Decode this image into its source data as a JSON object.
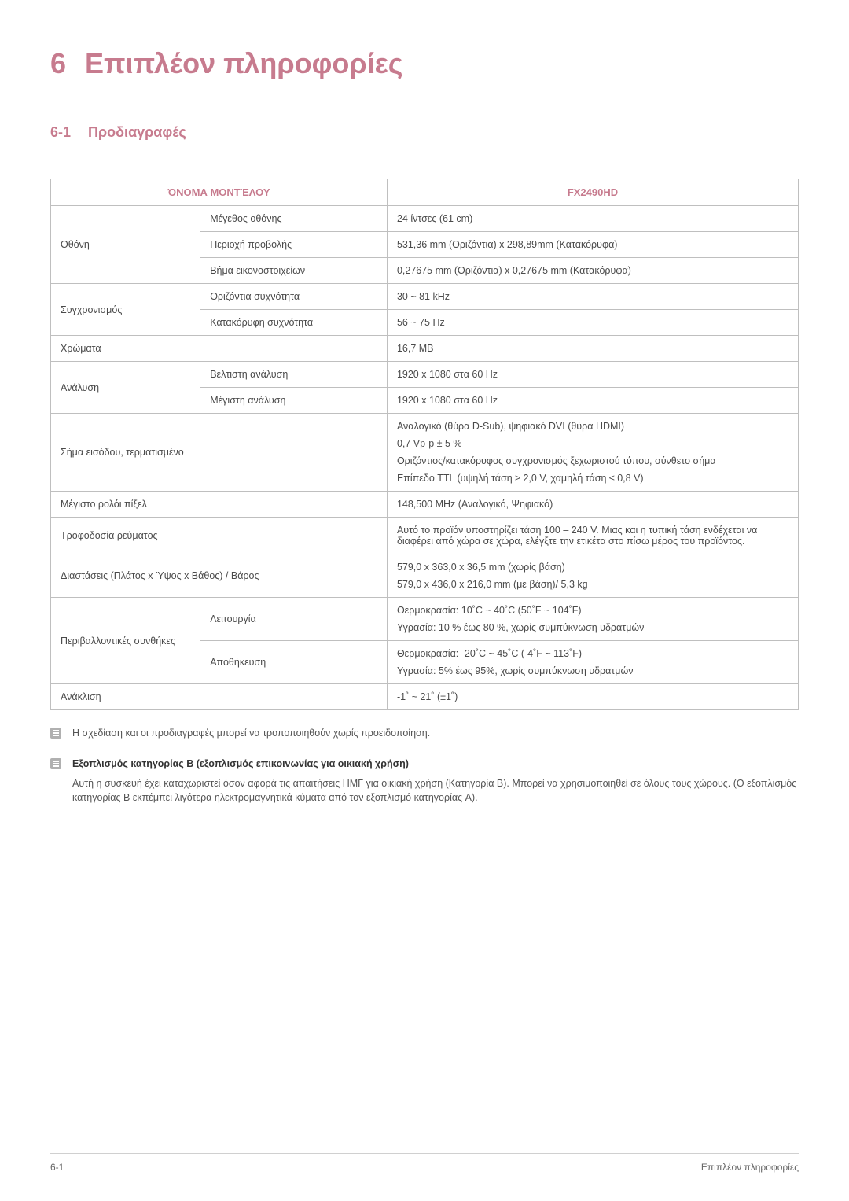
{
  "chapter": {
    "number": "6",
    "title": "Επιπλέον πληροφορίες"
  },
  "section": {
    "number": "6-1",
    "title": "Προδιαγραφές"
  },
  "table": {
    "header": {
      "model_name": "ΌΝΟΜΑ ΜΟΝΤΈΛΟΥ",
      "model_value": "FX2490HD"
    },
    "rows": {
      "display_label": "Οθόνη",
      "display_size_label": "Μέγεθος οθόνης",
      "display_size_value": "24 ίντσες (61 cm)",
      "display_area_label": "Περιοχή προβολής",
      "display_area_value": "531,36 mm (Οριζόντια) x 298,89mm (Κατακόρυφα)",
      "display_pitch_label": "Βήμα εικονοστοιχείων",
      "display_pitch_value": "0,27675 mm (Οριζόντια) x 0,27675 mm (Κατακόρυφα)",
      "sync_label": "Συγχρονισμός",
      "hfreq_label": "Οριζόντια συχνότητα",
      "hfreq_value": "30 ~ 81 kHz",
      "vfreq_label": "Κατακόρυφη συχνότητα",
      "vfreq_value": "56 ~ 75 Hz",
      "colors_label": "Χρώματα",
      "colors_value": "16,7 MB",
      "resolution_label": "Ανάλυση",
      "best_res_label": "Βέλτιστη ανάλυση",
      "best_res_value": "1920 x 1080 στα 60 Hz",
      "max_res_label": "Μέγιστη ανάλυση",
      "max_res_value": "1920 x 1080 στα 60 Hz",
      "signal_label": "Σήμα εισόδου, τερματισμένο",
      "signal_l1": "Αναλογικό (θύρα D-Sub), ψηφιακό DVI (θύρα HDMI)",
      "signal_l2": "0,7 Vp-p ± 5 %",
      "signal_l3": "Οριζόντιος/κατακόρυφος συγχρονισμός ξεχωριστού τύπου, σύνθετο σήμα",
      "signal_l4": "Επίπεδο TTL (υψηλή τάση ≥ 2,0 V, χαμηλή τάση ≤ 0,8 V)",
      "pixel_clock_label": "Μέγιστο ρολόι πίξελ",
      "pixel_clock_value": "148,500 MHz (Αναλογικό, Ψηφιακό)",
      "power_label": "Τροφοδοσία ρεύματος",
      "power_value": "Αυτό το προϊόν υποστηρίζει τάση 100 – 240 V. Μιας και η τυπική τάση ενδέχεται να διαφέρει από χώρα σε χώρα, ελέγξτε την ετικέτα στο πίσω μέρος του προϊόντος.",
      "dim_label": "Διαστάσεις (Πλάτος x Ύψος x Βάθος) / Βάρος",
      "dim_l1": "579,0 x 363,0 x 36,5 mm (χωρίς βάση)",
      "dim_l2": "579,0 x 436,0 x 216,0 mm (με βάση)/ 5,3 kg",
      "env_label": "Περιβαλλοντικές συνθήκες",
      "env_op_label": "Λειτουργία",
      "env_op_l1": "Θερμοκρασία: 10˚C ~ 40˚C (50˚F ~ 104˚F)",
      "env_op_l2": "Υγρασία: 10 % έως 80 %, χωρίς συμπύκνωση υδρατμών",
      "env_st_label": "Αποθήκευση",
      "env_st_l1": "Θερμοκρασία: -20˚C ~ 45˚C (-4˚F ~ 113˚F)",
      "env_st_l2": "Υγρασία: 5% έως 95%, χωρίς συμπύκνωση υδρατμών",
      "tilt_label": "Ανάκλιση",
      "tilt_value": "-1˚ ~ 21˚ (±1˚)"
    }
  },
  "notes": {
    "note1": "Η σχεδίαση και οι προδιαγραφές μπορεί να τροποποιηθούν χωρίς προειδοποίηση.",
    "note2_title": "Εξοπλισμός κατηγορίας B (εξοπλισμός επικοινωνίας για οικιακή χρήση)",
    "note2_body": "Αυτή η συσκευή έχει καταχωριστεί όσον αφορά τις απαιτήσεις HMΓ για οικιακή χρήση (Κατηγορία B). Μπορεί να χρησιμοποιηθεί σε όλους τους χώρους. (Ο εξοπλισμός κατηγορίας B εκπέμπει λιγότερα ηλεκτρομαγνητικά κύματα από τον εξοπλισμό κατηγορίας A)."
  },
  "footer": {
    "left": "6-1",
    "right": "Επιπλέον πληροφορίες"
  },
  "colors": {
    "accent": "#c77b8e",
    "border": "#bfbfbf",
    "text": "#4a4a4a"
  }
}
